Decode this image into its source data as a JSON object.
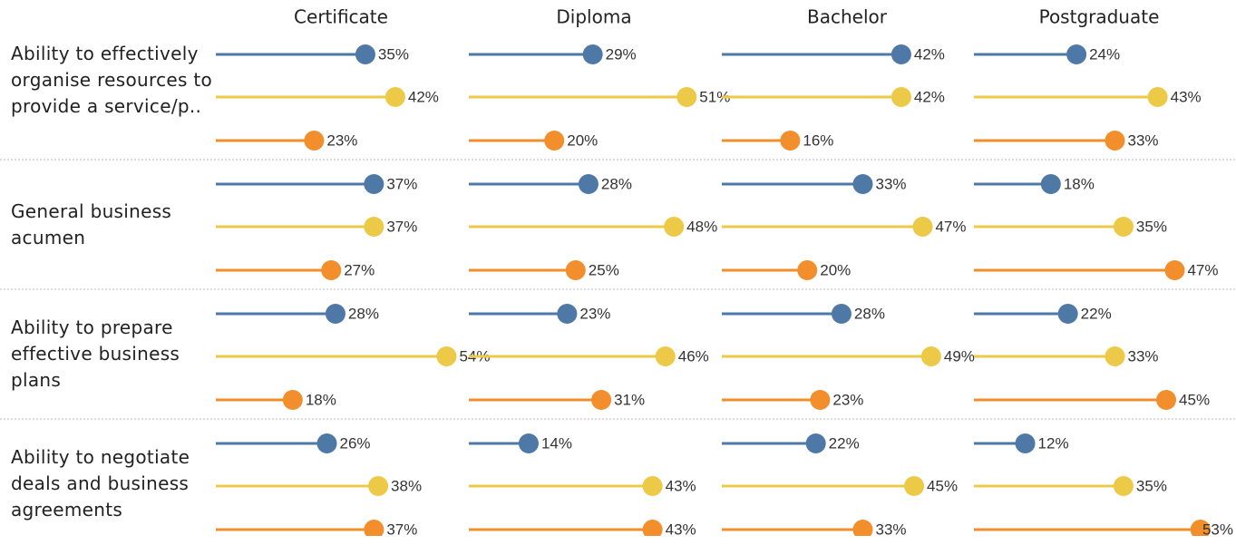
{
  "chart_data": {
    "type": "lollipop",
    "columns": [
      "Certificate",
      "Diploma",
      "Bachelor",
      "Postgraduate"
    ],
    "rows": [
      "Ability to effectively organise resources to provide a service/p..",
      "General business acumen",
      "Ability to prepare effective business plans",
      "Ability to negotiate deals and business agreements"
    ],
    "xlim": [
      0,
      59
    ],
    "series": [
      {
        "color": "#4e79a7",
        "values": [
          [
            35,
            29,
            42,
            24
          ],
          [
            37,
            28,
            33,
            18
          ],
          [
            28,
            23,
            28,
            22
          ],
          [
            26,
            14,
            22,
            12
          ]
        ],
        "value_labels": [
          [
            "35%",
            "29%",
            "42%",
            "24%"
          ],
          [
            "37%",
            "28%",
            "33%",
            "18%"
          ],
          [
            "28%",
            "23%",
            "28%",
            "22%"
          ],
          [
            "26%",
            "14%",
            "22%",
            "12%"
          ]
        ]
      },
      {
        "color": "#edc948",
        "values": [
          [
            42,
            51,
            42,
            43
          ],
          [
            37,
            48,
            47,
            35
          ],
          [
            54,
            46,
            49,
            33
          ],
          [
            38,
            43,
            45,
            35
          ]
        ],
        "value_labels": [
          [
            "42%",
            "51%",
            "42%",
            "43%"
          ],
          [
            "37%",
            "48%",
            "47%",
            "35%"
          ],
          [
            "54%",
            "46%",
            "49%",
            "33%"
          ],
          [
            "38%",
            "43%",
            "45%",
            "35%"
          ]
        ]
      },
      {
        "color": "#f28e2b",
        "values": [
          [
            23,
            20,
            16,
            33
          ],
          [
            27,
            25,
            20,
            47
          ],
          [
            18,
            31,
            23,
            45
          ],
          [
            37,
            43,
            33,
            53
          ]
        ],
        "value_labels": [
          [
            "23%",
            "20%",
            "16%",
            "33%"
          ],
          [
            "27%",
            "25%",
            "20%",
            "47%"
          ],
          [
            "18%",
            "31%",
            "23%",
            "45%"
          ],
          [
            "37%",
            "43%",
            "33%",
            "53%"
          ]
        ]
      }
    ]
  }
}
